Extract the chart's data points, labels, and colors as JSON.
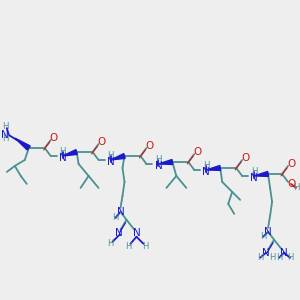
{
  "bg_color": "#eeeeee",
  "tc": "#4a9090",
  "bc": "#1a1acc",
  "rc": "#cc1a1a",
  "figsize": [
    3.0,
    3.0
  ],
  "dpi": 100,
  "xlim": [
    0,
    300
  ],
  "ylim": [
    0,
    300
  ]
}
